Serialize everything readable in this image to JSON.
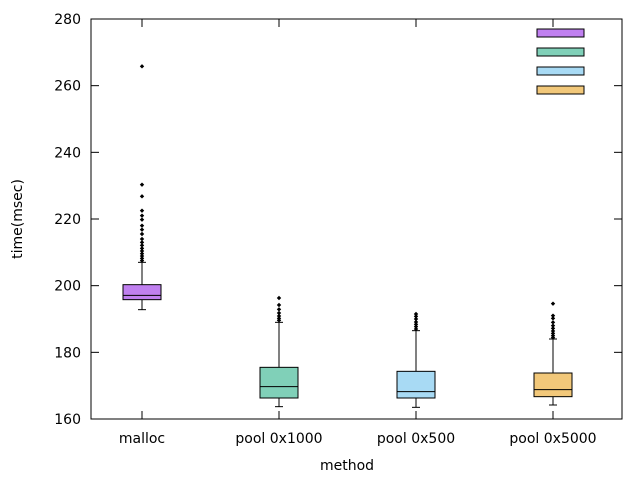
{
  "chart_data": {
    "type": "boxplot",
    "xlabel": "method",
    "ylabel": "time(msec)",
    "ylim": [
      160,
      280
    ],
    "yticks": [
      160,
      180,
      200,
      220,
      240,
      260,
      280
    ],
    "grid": false,
    "legend": {
      "placement": "top-right",
      "entries_labeled": false
    },
    "categories": [
      "malloc",
      "pool 0x1000",
      "pool 0x500",
      "pool 0x5000"
    ],
    "series": [
      {
        "category": "malloc",
        "color": "#c080f0",
        "whisker_low": 192.8,
        "q1": 195.8,
        "median": 197.1,
        "q3": 200.3,
        "whisker_high": 207.0,
        "outliers": [
          207.5,
          208.2,
          208.9,
          209.6,
          210.4,
          211.2,
          212.1,
          213.0,
          214.0,
          215.5,
          216.8,
          218.0,
          219.8,
          221.0,
          222.5,
          226.8,
          230.3,
          265.8
        ]
      },
      {
        "category": "pool 0x1000",
        "color": "#80d0b8",
        "whisker_low": 163.7,
        "q1": 166.3,
        "median": 169.7,
        "q3": 175.5,
        "whisker_high": 189.0,
        "outliers": [
          189.6,
          190.2,
          190.9,
          191.8,
          192.9,
          194.2,
          196.3
        ]
      },
      {
        "category": "pool 0x500",
        "color": "#a8daf4",
        "whisker_low": 163.5,
        "q1": 166.3,
        "median": 168.2,
        "q3": 174.3,
        "whisker_high": 186.5,
        "outliers": [
          187.0,
          187.7,
          188.4,
          189.1,
          190.0,
          190.8,
          191.5
        ]
      },
      {
        "category": "pool 0x5000",
        "color": "#f2c87a",
        "whisker_low": 164.2,
        "q1": 166.7,
        "median": 168.8,
        "q3": 173.8,
        "whisker_high": 184.0,
        "outliers": [
          184.4,
          185.0,
          185.7,
          186.4,
          187.2,
          188.0,
          189.0,
          190.2,
          191.0,
          194.6
        ]
      }
    ]
  }
}
